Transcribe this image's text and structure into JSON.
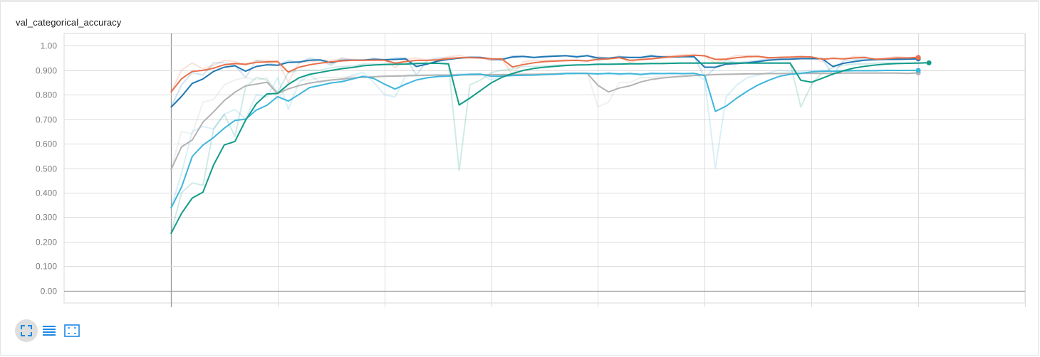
{
  "card": {
    "title": "val_categorical_accuracy"
  },
  "chart_data": {
    "type": "line",
    "title": "val_categorical_accuracy",
    "ylim": [
      -0.05,
      1.05
    ],
    "xlim": [
      -10,
      80
    ],
    "y_ticks": [
      "1.00",
      "0.900",
      "0.800",
      "0.700",
      "0.600",
      "0.500",
      "0.400",
      "0.300",
      "0.200",
      "0.100",
      "0.00"
    ],
    "grid": true,
    "legend": "none",
    "series": [
      {
        "color": "#1f77b4",
        "smoothed": [
          0.748,
          0.793,
          0.846,
          0.864,
          0.895,
          0.912,
          0.918,
          0.896,
          0.915,
          0.922,
          0.92,
          0.932,
          0.933,
          0.941,
          0.942,
          0.93,
          0.94,
          0.941,
          0.941,
          0.944,
          0.943,
          0.944,
          0.946,
          0.915,
          0.925,
          0.937,
          0.944,
          0.949,
          0.952,
          0.952,
          0.946,
          0.944,
          0.954,
          0.956,
          0.952,
          0.955,
          0.957,
          0.959,
          0.955,
          0.959,
          0.95,
          0.949,
          0.953,
          0.952,
          0.952,
          0.958,
          0.954,
          0.954,
          0.955,
          0.955,
          0.912,
          0.912,
          0.925,
          0.927,
          0.93,
          0.935,
          0.941,
          0.944,
          0.945,
          0.947,
          0.947,
          0.947,
          0.915,
          0.928,
          0.935,
          0.941,
          0.943,
          0.944,
          0.944,
          0.945,
          0.946
        ],
        "raw": [
          0.748,
          0.84,
          0.89,
          0.88,
          0.93,
          0.93,
          0.92,
          0.87,
          0.94,
          0.93,
          0.92,
          0.94,
          0.93,
          0.95,
          0.94,
          0.92,
          0.95,
          0.94,
          0.94,
          0.95,
          0.94,
          0.95,
          0.95,
          0.88,
          0.94,
          0.95,
          0.95,
          0.95,
          0.955,
          0.953,
          0.94,
          0.94,
          0.96,
          0.958,
          0.95,
          0.958,
          0.96,
          0.96,
          0.95,
          0.962,
          0.94,
          0.948,
          0.956,
          0.952,
          0.952,
          0.962,
          0.95,
          0.955,
          0.956,
          0.955,
          0.87,
          0.91,
          0.94,
          0.93,
          0.935,
          0.94,
          0.946,
          0.947,
          0.946,
          0.948,
          0.947,
          0.947,
          0.88,
          0.94,
          0.942,
          0.946,
          0.945,
          0.945,
          0.944,
          0.946,
          0.947
        ]
      },
      {
        "color": "#e8704a",
        "smoothed": [
          0.81,
          0.865,
          0.895,
          0.899,
          0.908,
          0.922,
          0.927,
          0.924,
          0.932,
          0.934,
          0.935,
          0.892,
          0.912,
          0.922,
          0.929,
          0.934,
          0.938,
          0.94,
          0.94,
          0.941,
          0.941,
          0.929,
          0.935,
          0.94,
          0.94,
          0.942,
          0.947,
          0.951,
          0.951,
          0.95,
          0.946,
          0.946,
          0.913,
          0.923,
          0.93,
          0.935,
          0.937,
          0.939,
          0.94,
          0.938,
          0.944,
          0.946,
          0.951,
          0.94,
          0.943,
          0.946,
          0.951,
          0.955,
          0.958,
          0.961,
          0.959,
          0.944,
          0.945,
          0.951,
          0.955,
          0.956,
          0.951,
          0.952,
          0.953,
          0.955,
          0.954,
          0.945,
          0.948,
          0.946,
          0.95,
          0.952,
          0.945,
          0.947,
          0.95,
          0.95,
          0.952
        ],
        "raw": [
          0.81,
          0.9,
          0.93,
          0.905,
          0.92,
          0.94,
          0.935,
          0.92,
          0.94,
          0.94,
          0.937,
          0.85,
          0.93,
          0.935,
          0.94,
          0.94,
          0.945,
          0.945,
          0.942,
          0.945,
          0.943,
          0.91,
          0.945,
          0.95,
          0.94,
          0.945,
          0.955,
          0.96,
          0.952,
          0.95,
          0.94,
          0.946,
          0.88,
          0.935,
          0.94,
          0.94,
          0.94,
          0.942,
          0.942,
          0.936,
          0.955,
          0.948,
          0.958,
          0.93,
          0.948,
          0.952,
          0.958,
          0.96,
          0.962,
          0.965,
          0.955,
          0.93,
          0.947,
          0.96,
          0.96,
          0.958,
          0.945,
          0.954,
          0.955,
          0.958,
          0.953,
          0.935,
          0.952,
          0.944,
          0.956,
          0.955,
          0.94,
          0.95,
          0.955,
          0.951,
          0.955
        ]
      },
      {
        "color": "#b3b3b3",
        "smoothed": [
          0.493,
          0.587,
          0.615,
          0.688,
          0.73,
          0.776,
          0.81,
          0.836,
          0.843,
          0.851,
          0.805,
          0.824,
          0.837,
          0.847,
          0.854,
          0.86,
          0.864,
          0.868,
          0.871,
          0.873,
          0.875,
          0.876,
          0.877,
          0.878,
          0.879,
          0.88,
          0.88,
          0.881,
          0.881,
          0.881,
          0.882,
          0.882,
          0.882,
          0.883,
          0.883,
          0.884,
          0.885,
          0.886,
          0.887,
          0.887,
          0.838,
          0.811,
          0.827,
          0.836,
          0.852,
          0.862,
          0.868,
          0.872,
          0.875,
          0.878,
          0.88,
          0.882,
          0.883,
          0.884,
          0.885,
          0.885,
          0.886,
          0.886,
          0.887,
          0.887,
          0.887,
          0.887,
          0.887,
          0.888,
          0.888,
          0.888,
          0.888,
          0.888,
          0.888,
          0.887,
          0.889
        ],
        "raw": [
          0.493,
          0.65,
          0.64,
          0.77,
          0.78,
          0.84,
          0.86,
          0.87,
          0.86,
          0.87,
          0.78,
          0.85,
          0.86,
          0.86,
          0.87,
          0.87,
          0.87,
          0.875,
          0.875,
          0.875,
          0.878,
          0.878,
          0.878,
          0.88,
          0.88,
          0.882,
          0.881,
          0.882,
          0.882,
          0.882,
          0.883,
          0.883,
          0.883,
          0.884,
          0.884,
          0.885,
          0.886,
          0.887,
          0.888,
          0.888,
          0.75,
          0.77,
          0.85,
          0.85,
          0.87,
          0.87,
          0.875,
          0.876,
          0.878,
          0.88,
          0.882,
          0.884,
          0.884,
          0.885,
          0.886,
          0.886,
          0.887,
          0.887,
          0.888,
          0.888,
          0.888,
          0.888,
          0.888,
          0.889,
          0.889,
          0.889,
          0.889,
          0.889,
          0.889,
          0.887,
          0.89
        ]
      },
      {
        "color": "#3fb6dc",
        "smoothed": [
          0.336,
          0.423,
          0.548,
          0.594,
          0.625,
          0.663,
          0.695,
          0.7,
          0.737,
          0.757,
          0.792,
          0.774,
          0.801,
          0.829,
          0.838,
          0.848,
          0.853,
          0.864,
          0.875,
          0.866,
          0.843,
          0.823,
          0.843,
          0.86,
          0.869,
          0.874,
          0.876,
          0.88,
          0.883,
          0.884,
          0.875,
          0.876,
          0.878,
          0.879,
          0.88,
          0.882,
          0.883,
          0.886,
          0.887,
          0.887,
          0.885,
          0.887,
          0.885,
          0.886,
          0.883,
          0.886,
          0.886,
          0.887,
          0.886,
          0.887,
          0.878,
          0.732,
          0.753,
          0.786,
          0.815,
          0.84,
          0.859,
          0.875,
          0.883,
          0.887,
          0.893,
          0.896,
          0.896,
          0.897,
          0.898,
          0.898,
          0.898,
          0.899,
          0.899,
          0.899,
          0.899
        ],
        "raw": [
          0.336,
          0.48,
          0.65,
          0.67,
          0.66,
          0.72,
          0.74,
          0.7,
          0.8,
          0.79,
          0.87,
          0.74,
          0.85,
          0.88,
          0.85,
          0.86,
          0.86,
          0.88,
          0.89,
          0.85,
          0.8,
          0.79,
          0.88,
          0.88,
          0.88,
          0.88,
          0.878,
          0.885,
          0.886,
          0.885,
          0.86,
          0.877,
          0.881,
          0.88,
          0.882,
          0.885,
          0.885,
          0.89,
          0.888,
          0.887,
          0.882,
          0.89,
          0.88,
          0.888,
          0.878,
          0.89,
          0.886,
          0.888,
          0.885,
          0.888,
          0.86,
          0.5,
          0.79,
          0.84,
          0.87,
          0.88,
          0.89,
          0.9,
          0.896,
          0.894,
          0.9,
          0.9,
          0.896,
          0.898,
          0.899,
          0.898,
          0.898,
          0.9,
          0.899,
          0.899,
          0.899
        ]
      },
      {
        "color": "#129c88",
        "smoothed": [
          0.232,
          0.316,
          0.378,
          0.402,
          0.513,
          0.595,
          0.609,
          0.696,
          0.763,
          0.803,
          0.805,
          0.842,
          0.869,
          0.883,
          0.891,
          0.899,
          0.906,
          0.911,
          0.918,
          0.921,
          0.923,
          0.924,
          0.925,
          0.927,
          0.928,
          0.928,
          0.926,
          0.758,
          0.786,
          0.817,
          0.848,
          0.871,
          0.886,
          0.899,
          0.907,
          0.912,
          0.916,
          0.919,
          0.921,
          0.922,
          0.924,
          0.924,
          0.925,
          0.926,
          0.926,
          0.927,
          0.927,
          0.928,
          0.929,
          0.929,
          0.929,
          0.929,
          0.929,
          0.929,
          0.929,
          0.929,
          0.929,
          0.929,
          0.929,
          0.859,
          0.851,
          0.867,
          0.884,
          0.898,
          0.909,
          0.916,
          0.921,
          0.925,
          0.927,
          0.928,
          0.929,
          0.93
        ],
        "raw": [
          0.232,
          0.4,
          0.44,
          0.43,
          0.66,
          0.72,
          0.63,
          0.83,
          0.87,
          0.86,
          0.81,
          0.89,
          0.9,
          0.9,
          0.9,
          0.91,
          0.915,
          0.917,
          0.925,
          0.925,
          0.925,
          0.925,
          0.926,
          0.929,
          0.929,
          0.928,
          0.924,
          0.49,
          0.84,
          0.86,
          0.89,
          0.9,
          0.905,
          0.915,
          0.915,
          0.918,
          0.92,
          0.922,
          0.923,
          0.923,
          0.926,
          0.925,
          0.926,
          0.927,
          0.927,
          0.928,
          0.928,
          0.929,
          0.93,
          0.93,
          0.93,
          0.93,
          0.93,
          0.93,
          0.93,
          0.93,
          0.93,
          0.93,
          0.93,
          0.75,
          0.84,
          0.89,
          0.91,
          0.92,
          0.925,
          0.926,
          0.928,
          0.93,
          0.929,
          0.929,
          0.93,
          0.931
        ]
      }
    ]
  },
  "toolbar": {
    "items": [
      {
        "icon": "fit-domain-icon",
        "active": true
      },
      {
        "icon": "toggle-log-scale-icon",
        "active": false
      },
      {
        "icon": "fit-to-view-icon",
        "active": false
      }
    ]
  }
}
